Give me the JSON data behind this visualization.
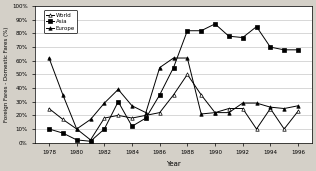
{
  "years": [
    1978,
    1979,
    1980,
    1981,
    1982,
    1983,
    1984,
    1985,
    1986,
    1987,
    1988,
    1989,
    1990,
    1991,
    1992,
    1993,
    1994,
    1995,
    1996
  ],
  "world": [
    25,
    17,
    10,
    2,
    18,
    20,
    18,
    20,
    22,
    35,
    50,
    35,
    22,
    25,
    25,
    10,
    25,
    10,
    23
  ],
  "asia": [
    10,
    7,
    2,
    1,
    10,
    30,
    12,
    18,
    35,
    55,
    82,
    82,
    87,
    78,
    77,
    85,
    70,
    68,
    68
  ],
  "europe": [
    62,
    35,
    10,
    17,
    29,
    39,
    27,
    22,
    55,
    62,
    62,
    21,
    22,
    22,
    29,
    29,
    26,
    25,
    27
  ],
  "ylim": [
    0,
    100
  ],
  "yticks": [
    0,
    10,
    20,
    30,
    40,
    50,
    60,
    70,
    80,
    90,
    100
  ],
  "ytick_labels": [
    "0%",
    "10%",
    "20%",
    "30%",
    "40%",
    "50%",
    "60%",
    "70%",
    "80%",
    "90%",
    "100%"
  ],
  "xticks": [
    1978,
    1980,
    1982,
    1984,
    1986,
    1988,
    1990,
    1992,
    1994,
    1996
  ],
  "xlabel": "Year",
  "ylabel": "Foreign Fares - Domestic Fares (%)",
  "bg_color": "#ffffff",
  "fig_bg": "#d4d0c8",
  "legend_labels": [
    "World",
    "Asia",
    "Europe"
  ]
}
